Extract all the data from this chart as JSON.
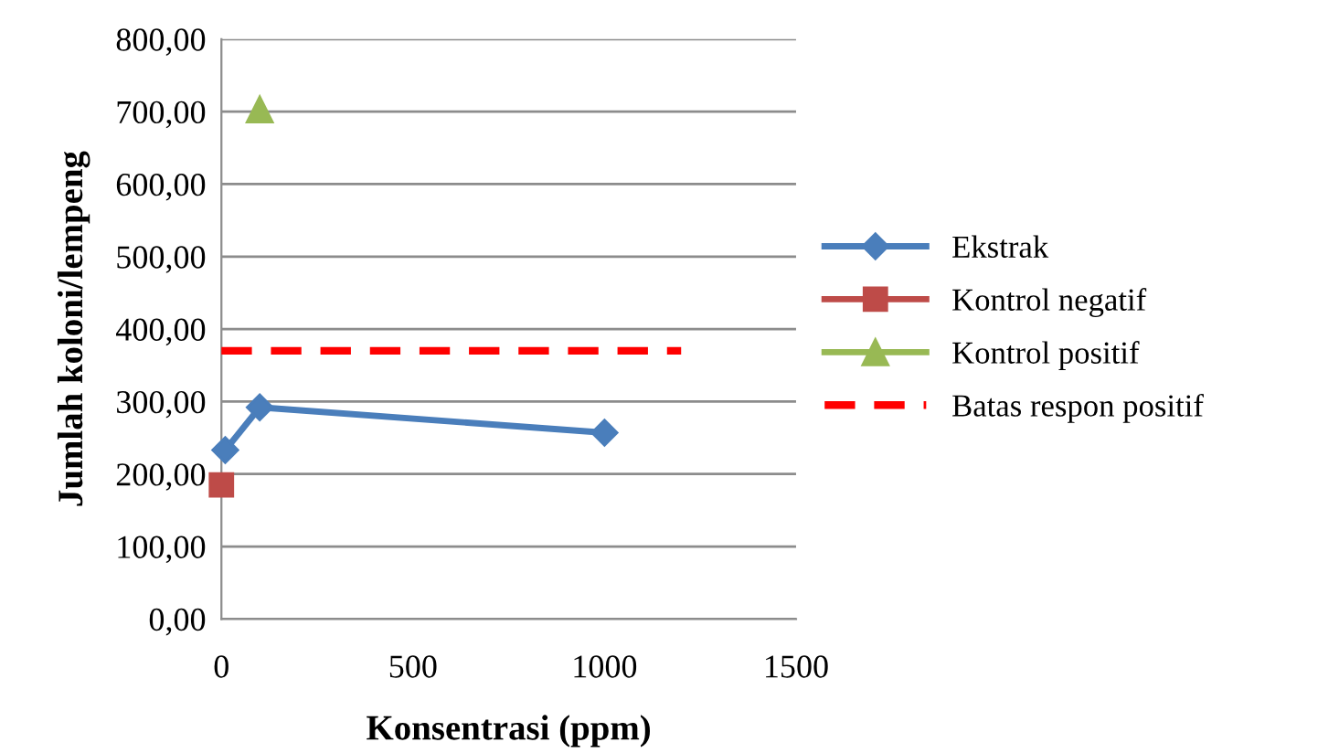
{
  "chart_data": {
    "type": "line",
    "xlabel": "Konsentrasi (ppm)",
    "ylabel": "Jumlah koloni/lempeng",
    "xlim": [
      0,
      1500
    ],
    "xticks": [
      0,
      500,
      1000,
      1500
    ],
    "ylim": [
      0,
      800
    ],
    "yticks": [
      {
        "value": 0,
        "label": "0,00"
      },
      {
        "value": 100,
        "label": "100,00"
      },
      {
        "value": 200,
        "label": "200,00"
      },
      {
        "value": 300,
        "label": "300,00"
      },
      {
        "value": 400,
        "label": "400,00"
      },
      {
        "value": 500,
        "label": "500,00"
      },
      {
        "value": 600,
        "label": "600,00"
      },
      {
        "value": 700,
        "label": "700,00"
      },
      {
        "value": 800,
        "label": "800,00"
      }
    ],
    "grid": "y",
    "legend": "right",
    "series": [
      {
        "name": "Ekstrak",
        "color": "#4a7ebb",
        "marker": "diamond",
        "line_style": "solid",
        "x": [
          10,
          100,
          1000
        ],
        "values": [
          233,
          292,
          257
        ]
      },
      {
        "name": "Kontrol negatif",
        "type": "scatter",
        "color": "#be4b48",
        "marker": "square",
        "x": [
          0
        ],
        "values": [
          185
        ]
      },
      {
        "name": "Kontrol positif",
        "type": "scatter",
        "color": "#98b954",
        "marker": "triangle",
        "x": [
          100
        ],
        "values": [
          703
        ]
      },
      {
        "name": "Batas respon positif",
        "color": "#ff0000",
        "marker": "none",
        "line_style": "dashed",
        "x": [
          0,
          1200
        ],
        "values": [
          370,
          370
        ]
      }
    ]
  }
}
